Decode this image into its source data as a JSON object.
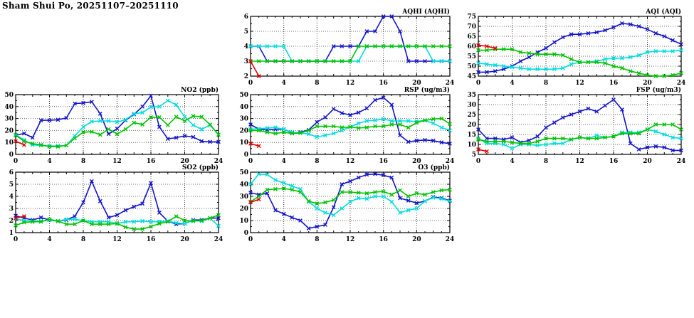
{
  "title": "Sham Shui Po, 20251107–20251110",
  "palette": {
    "blue": "#1414cc",
    "cyan": "#00dede",
    "green": "#00c400",
    "red": "#e80000"
  },
  "chart_data": [
    {
      "id": "aqhi",
      "type": "line",
      "title": "AQHI (AQHI)",
      "xlim": [
        0,
        24
      ],
      "ylim": [
        2,
        6
      ],
      "xticks": [
        0,
        4,
        8,
        12,
        16,
        20,
        24
      ],
      "yticks": [
        2,
        3,
        4,
        5,
        6
      ],
      "grid": true,
      "legend": "none",
      "series": [
        {
          "name": "blue",
          "color_key": "blue",
          "y": [
            4,
            4,
            3,
            3,
            3,
            3,
            3,
            3,
            3,
            3,
            4,
            4,
            4,
            4,
            5,
            5,
            6,
            6,
            5,
            3,
            3,
            3,
            3,
            3,
            3
          ]
        },
        {
          "name": "cyan",
          "color_key": "cyan",
          "y": [
            4,
            4,
            4,
            4,
            4,
            3,
            3,
            3,
            3,
            3,
            3,
            3,
            3,
            3,
            4,
            4,
            4,
            4,
            4,
            4,
            4,
            4,
            3,
            3,
            3
          ]
        },
        {
          "name": "green",
          "color_key": "green",
          "y": [
            3,
            3,
            3,
            3,
            3,
            3,
            3,
            3,
            3,
            3,
            3,
            3,
            3,
            4,
            4,
            4,
            4,
            4,
            4,
            4,
            4,
            4,
            4,
            4,
            4
          ]
        },
        {
          "name": "red",
          "color_key": "red",
          "x": [
            0,
            1
          ],
          "y": [
            3,
            2
          ]
        }
      ]
    },
    {
      "id": "aqi",
      "type": "line",
      "title": "AQI (AQI)",
      "xlim": [
        0,
        24
      ],
      "ylim": [
        45,
        75
      ],
      "xticks": [
        0,
        4,
        8,
        12,
        16,
        20,
        24
      ],
      "yticks": [
        45,
        50,
        55,
        60,
        65,
        70,
        75
      ],
      "grid": true,
      "legend": "none",
      "series": [
        {
          "name": "blue",
          "color_key": "blue",
          "y": [
            47,
            47,
            47.5,
            48.5,
            50,
            52.5,
            54.5,
            57,
            59,
            62,
            64.5,
            66,
            66,
            66.5,
            67,
            68,
            69.5,
            71.5,
            71,
            70,
            68.5,
            66.5,
            65,
            63,
            61
          ]
        },
        {
          "name": "cyan",
          "color_key": "cyan",
          "y": [
            51.5,
            51,
            50.5,
            50,
            49.5,
            49,
            48.5,
            48.5,
            48.5,
            48.5,
            49,
            51,
            52,
            52,
            52.5,
            53.5,
            54,
            54,
            54.5,
            55.5,
            57,
            57.5,
            57.5,
            57.5,
            58
          ]
        },
        {
          "name": "green",
          "color_key": "green",
          "y": [
            58,
            58,
            58.5,
            58.5,
            58.5,
            57,
            56.5,
            56,
            56,
            56,
            55.5,
            53.5,
            52,
            52,
            52,
            51.5,
            50,
            49,
            47.5,
            46.5,
            45.5,
            45,
            45,
            45.5,
            46.5
          ]
        },
        {
          "name": "red",
          "color_key": "red",
          "x": [
            0,
            1,
            2
          ],
          "y": [
            60.5,
            60,
            59
          ]
        }
      ]
    },
    {
      "id": "no2",
      "type": "line",
      "title": "NO2 (ppb)",
      "xlim": [
        0,
        24
      ],
      "ylim": [
        0,
        50
      ],
      "xticks": [
        0,
        4,
        8,
        12,
        16,
        20,
        24
      ],
      "yticks": [
        0,
        10,
        20,
        30,
        40,
        50
      ],
      "grid": true,
      "legend": "none",
      "series": [
        {
          "name": "blue",
          "color_key": "blue",
          "y": [
            16,
            17.5,
            14,
            28.5,
            28.5,
            29,
            30.5,
            42.5,
            43,
            44,
            34,
            17,
            21.5,
            28.5,
            33.5,
            40,
            49,
            23,
            13,
            14,
            15.5,
            14.5,
            11,
            10.5,
            10.5
          ]
        },
        {
          "name": "cyan",
          "color_key": "cyan",
          "y": [
            16.5,
            12,
            8,
            7.5,
            7,
            7,
            7.5,
            15.5,
            23,
            27.5,
            28,
            28,
            27,
            29,
            34,
            35,
            39.5,
            40,
            45,
            41.5,
            31.5,
            24.5,
            21,
            24.5,
            16.5
          ]
        },
        {
          "name": "green",
          "color_key": "green",
          "y": [
            16,
            11,
            9,
            8,
            6.5,
            6.5,
            7.5,
            13.5,
            18.5,
            19,
            16.5,
            21,
            17,
            21,
            26.5,
            25,
            31,
            31,
            24.5,
            31.5,
            28,
            32,
            31.5,
            25,
            16.5
          ]
        },
        {
          "name": "red",
          "color_key": "red",
          "x": [
            0,
            1
          ],
          "y": [
            11,
            8
          ]
        }
      ]
    },
    {
      "id": "rsp",
      "type": "line",
      "title": "RSP (ug/m3)",
      "xlim": [
        0,
        24
      ],
      "ylim": [
        0,
        50
      ],
      "xticks": [
        0,
        4,
        8,
        12,
        16,
        20,
        24
      ],
      "yticks": [
        0,
        10,
        20,
        30,
        40,
        50
      ],
      "grid": true,
      "legend": "none",
      "series": [
        {
          "name": "blue",
          "color_key": "blue",
          "y": [
            25,
            21,
            20.5,
            21,
            21,
            18,
            18.5,
            20.5,
            27,
            31,
            38,
            34.5,
            33,
            35,
            38.5,
            45.5,
            47.5,
            41.5,
            16,
            10.5,
            11.5,
            12,
            11.5,
            10,
            9
          ]
        },
        {
          "name": "cyan",
          "color_key": "cyan",
          "y": [
            21,
            21.5,
            22,
            22.5,
            21,
            18.5,
            18,
            17,
            14.5,
            16,
            17.5,
            20,
            23,
            26,
            28,
            28.5,
            29.5,
            28,
            28,
            28,
            27.5,
            28.5,
            26,
            22.5,
            20
          ]
        },
        {
          "name": "green",
          "color_key": "green",
          "y": [
            20,
            20,
            18.5,
            17.5,
            18.5,
            17.5,
            18,
            20,
            23.5,
            23.5,
            23.5,
            22.5,
            23,
            22,
            22.5,
            23.5,
            23.5,
            25,
            25,
            22.5,
            26.5,
            28.5,
            29.5,
            30,
            25.5
          ]
        },
        {
          "name": "red",
          "color_key": "red",
          "x": [
            0,
            1
          ],
          "y": [
            9,
            7
          ]
        }
      ]
    },
    {
      "id": "fsp",
      "type": "line",
      "title": "FSP (ug/m3)",
      "xlim": [
        0,
        24
      ],
      "ylim": [
        5,
        35
      ],
      "xticks": [
        0,
        4,
        8,
        12,
        16,
        20,
        24
      ],
      "yticks": [
        5,
        10,
        15,
        20,
        25,
        30,
        35
      ],
      "grid": true,
      "legend": "none",
      "series": [
        {
          "name": "blue",
          "color_key": "blue",
          "y": [
            17.5,
            13,
            13,
            12.5,
            13.5,
            11,
            12,
            14,
            18.5,
            21,
            23.5,
            25,
            26.5,
            28,
            26.5,
            29.5,
            32.5,
            27.5,
            10.5,
            7.5,
            8.5,
            9,
            8.5,
            7,
            7
          ]
        },
        {
          "name": "cyan",
          "color_key": "cyan",
          "y": [
            13,
            10.5,
            10.5,
            10,
            8,
            10,
            10,
            9.5,
            10,
            10.5,
            10.5,
            12.5,
            13.5,
            13,
            14.5,
            13.5,
            14,
            16,
            16,
            16,
            17.5,
            16.5,
            15,
            13.5,
            13
          ]
        },
        {
          "name": "green",
          "color_key": "green",
          "y": [
            12.5,
            11.5,
            11.5,
            11.5,
            11,
            10.5,
            10.5,
            11.5,
            13,
            13,
            13,
            12.5,
            13.5,
            13,
            13,
            13.5,
            14,
            15.5,
            15.5,
            15.5,
            17.5,
            20,
            20,
            20,
            17.5
          ]
        },
        {
          "name": "red",
          "color_key": "red",
          "x": [
            0,
            1
          ],
          "y": [
            7.5,
            6.5
          ]
        }
      ]
    },
    {
      "id": "so2",
      "type": "line",
      "title": "SO2 (ppb)",
      "xlim": [
        0,
        24
      ],
      "ylim": [
        1,
        6
      ],
      "xticks": [
        0,
        4,
        8,
        12,
        16,
        20,
        24
      ],
      "yticks": [
        1,
        2,
        3,
        4,
        5,
        6
      ],
      "grid": true,
      "legend": "none",
      "series": [
        {
          "name": "blue",
          "color_key": "blue",
          "y": [
            2.4,
            2.2,
            2.05,
            2.25,
            2.05,
            1.95,
            2.05,
            2.35,
            3.5,
            5.25,
            3.6,
            2.25,
            2.45,
            2.85,
            3.15,
            3.4,
            5.1,
            2.65,
            1.95,
            1.7,
            1.75,
            2.05,
            2.05,
            2.2,
            2.2
          ]
        },
        {
          "name": "cyan",
          "color_key": "cyan",
          "y": [
            2.15,
            2,
            1.95,
            1.95,
            2.05,
            1.95,
            2.1,
            2.1,
            2,
            1.9,
            1.9,
            1.9,
            1.75,
            1.9,
            1.9,
            1.95,
            1.9,
            1.9,
            1.95,
            1.8,
            1.75,
            2,
            1.95,
            2.2,
            1.55
          ]
        },
        {
          "name": "green",
          "color_key": "green",
          "y": [
            1.6,
            1.85,
            1.9,
            1.9,
            2.1,
            1.95,
            1.7,
            1.7,
            2,
            1.7,
            1.7,
            1.7,
            1.75,
            1.45,
            1.3,
            1.3,
            1.5,
            1.75,
            1.9,
            2.35,
            2,
            1.95,
            2,
            2.2,
            2.45
          ]
        },
        {
          "name": "red",
          "color_key": "red",
          "x": [
            0,
            1
          ],
          "y": [
            2.2,
            2.35
          ]
        }
      ]
    },
    {
      "id": "o3",
      "type": "line",
      "title": "O3 (ppb)",
      "xlim": [
        0,
        24
      ],
      "ylim": [
        0,
        50
      ],
      "xticks": [
        0,
        4,
        8,
        12,
        16,
        20,
        24
      ],
      "yticks": [
        0,
        10,
        20,
        30,
        40,
        50
      ],
      "grid": true,
      "legend": "none",
      "series": [
        {
          "name": "blue",
          "color_key": "blue",
          "y": [
            33,
            31.5,
            32.5,
            18.5,
            15.5,
            12.5,
            10,
            3.5,
            5,
            6.5,
            21,
            40,
            42.5,
            45.5,
            48,
            48.5,
            47.5,
            45.5,
            28.5,
            26.5,
            24.5,
            26,
            29.5,
            28.5,
            26.5
          ]
        },
        {
          "name": "cyan",
          "color_key": "cyan",
          "y": [
            40,
            48.5,
            48,
            43.5,
            41,
            38.5,
            36,
            25.5,
            20,
            16.5,
            14.5,
            20,
            25.5,
            28.5,
            28,
            30,
            30,
            25.5,
            16.5,
            18.5,
            20,
            26,
            29,
            28,
            26
          ]
        },
        {
          "name": "green",
          "color_key": "green",
          "y": [
            25.5,
            30,
            35.5,
            36,
            36.5,
            35.5,
            33.5,
            26,
            24,
            25,
            27,
            33.5,
            33.5,
            33,
            32.5,
            33.5,
            34,
            31.5,
            35,
            30,
            32.5,
            31.5,
            33.5,
            35,
            35.5
          ]
        },
        {
          "name": "red",
          "color_key": "red",
          "x": [
            0,
            1
          ],
          "y": [
            25,
            27.5
          ]
        }
      ]
    }
  ]
}
